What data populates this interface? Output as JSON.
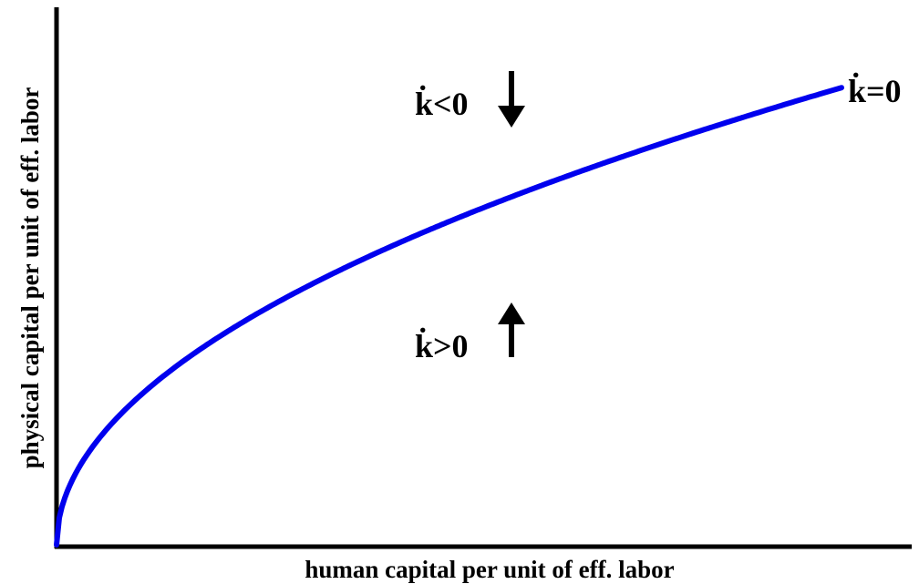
{
  "axes": {
    "x_label": "human capital per unit of eff. labor",
    "y_label": "physical capital per unit of eff. labor"
  },
  "regions": [
    {
      "label": "k̇<0"
    },
    {
      "label": "k̇>0"
    }
  ],
  "curve": {
    "label": "k̇=0"
  }
}
